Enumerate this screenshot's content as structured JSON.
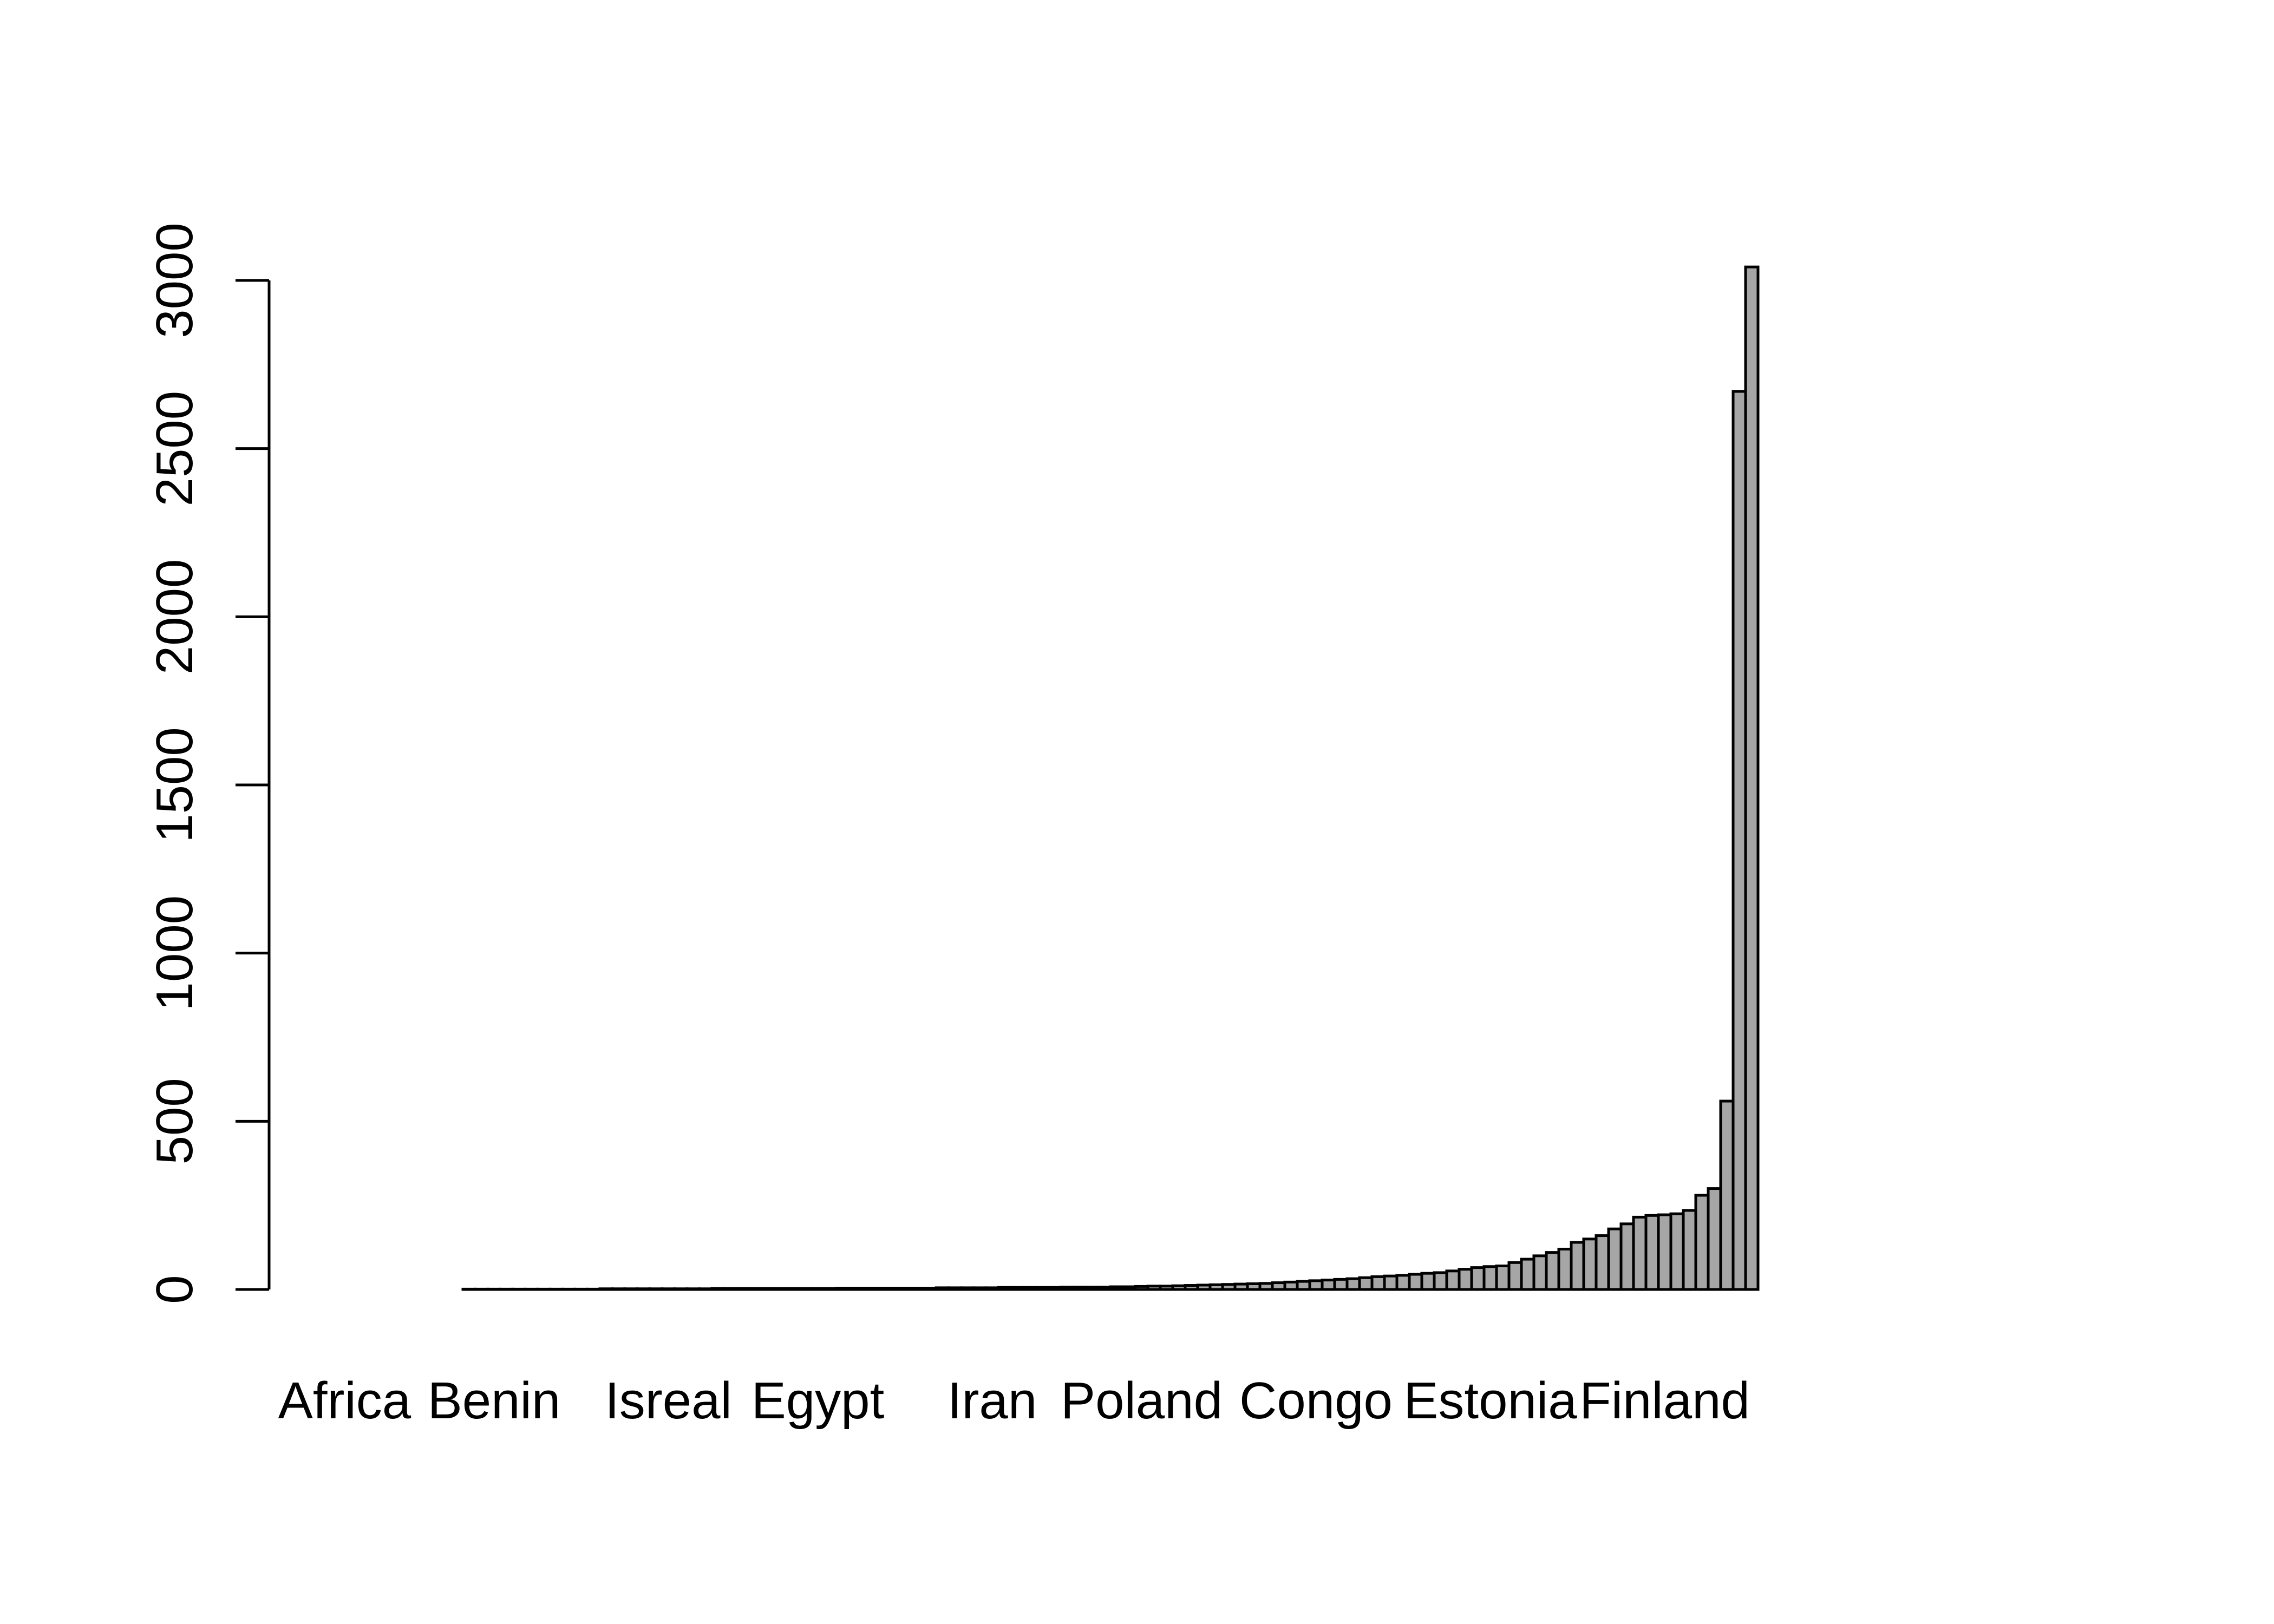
{
  "chart_data": {
    "type": "bar",
    "title": "",
    "xlabel": "",
    "ylabel": "",
    "ylim": [
      0,
      3050
    ],
    "yticks": [
      0,
      500,
      1000,
      1500,
      2000,
      2500,
      3000
    ],
    "bar_fill": "#a6a6a6",
    "bar_stroke": "#000000",
    "visible_category_labels": [
      "Africa",
      "Benin",
      "Isreal",
      "Egypt",
      "Iran",
      "Poland",
      "Congo",
      "Estonia",
      "Finland"
    ],
    "visible_label_bar_indices": [
      0,
      12,
      26,
      38,
      52,
      64,
      78,
      92,
      106
    ],
    "values": [
      0,
      0,
      0,
      0,
      0,
      0,
      0,
      0,
      0,
      0,
      1,
      1,
      1,
      1,
      1,
      1,
      1,
      1,
      1,
      1,
      1,
      2,
      2,
      2,
      2,
      2,
      2,
      2,
      2,
      2,
      3,
      3,
      3,
      3,
      3,
      3,
      3,
      3,
      3,
      3,
      4,
      4,
      4,
      4,
      4,
      4,
      4,
      4,
      5,
      5,
      5,
      5,
      5,
      6,
      6,
      6,
      6,
      6,
      7,
      7,
      7,
      7,
      8,
      8,
      9,
      10,
      10,
      11,
      12,
      13,
      14,
      15,
      16,
      17,
      18,
      20,
      22,
      24,
      26,
      28,
      30,
      32,
      35,
      38,
      40,
      42,
      45,
      48,
      50,
      55,
      60,
      65,
      68,
      70,
      80,
      90,
      100,
      110,
      120,
      140,
      150,
      160,
      180,
      195,
      215,
      220,
      222,
      225,
      235,
      280,
      300,
      560,
      2670,
      3040
    ]
  }
}
